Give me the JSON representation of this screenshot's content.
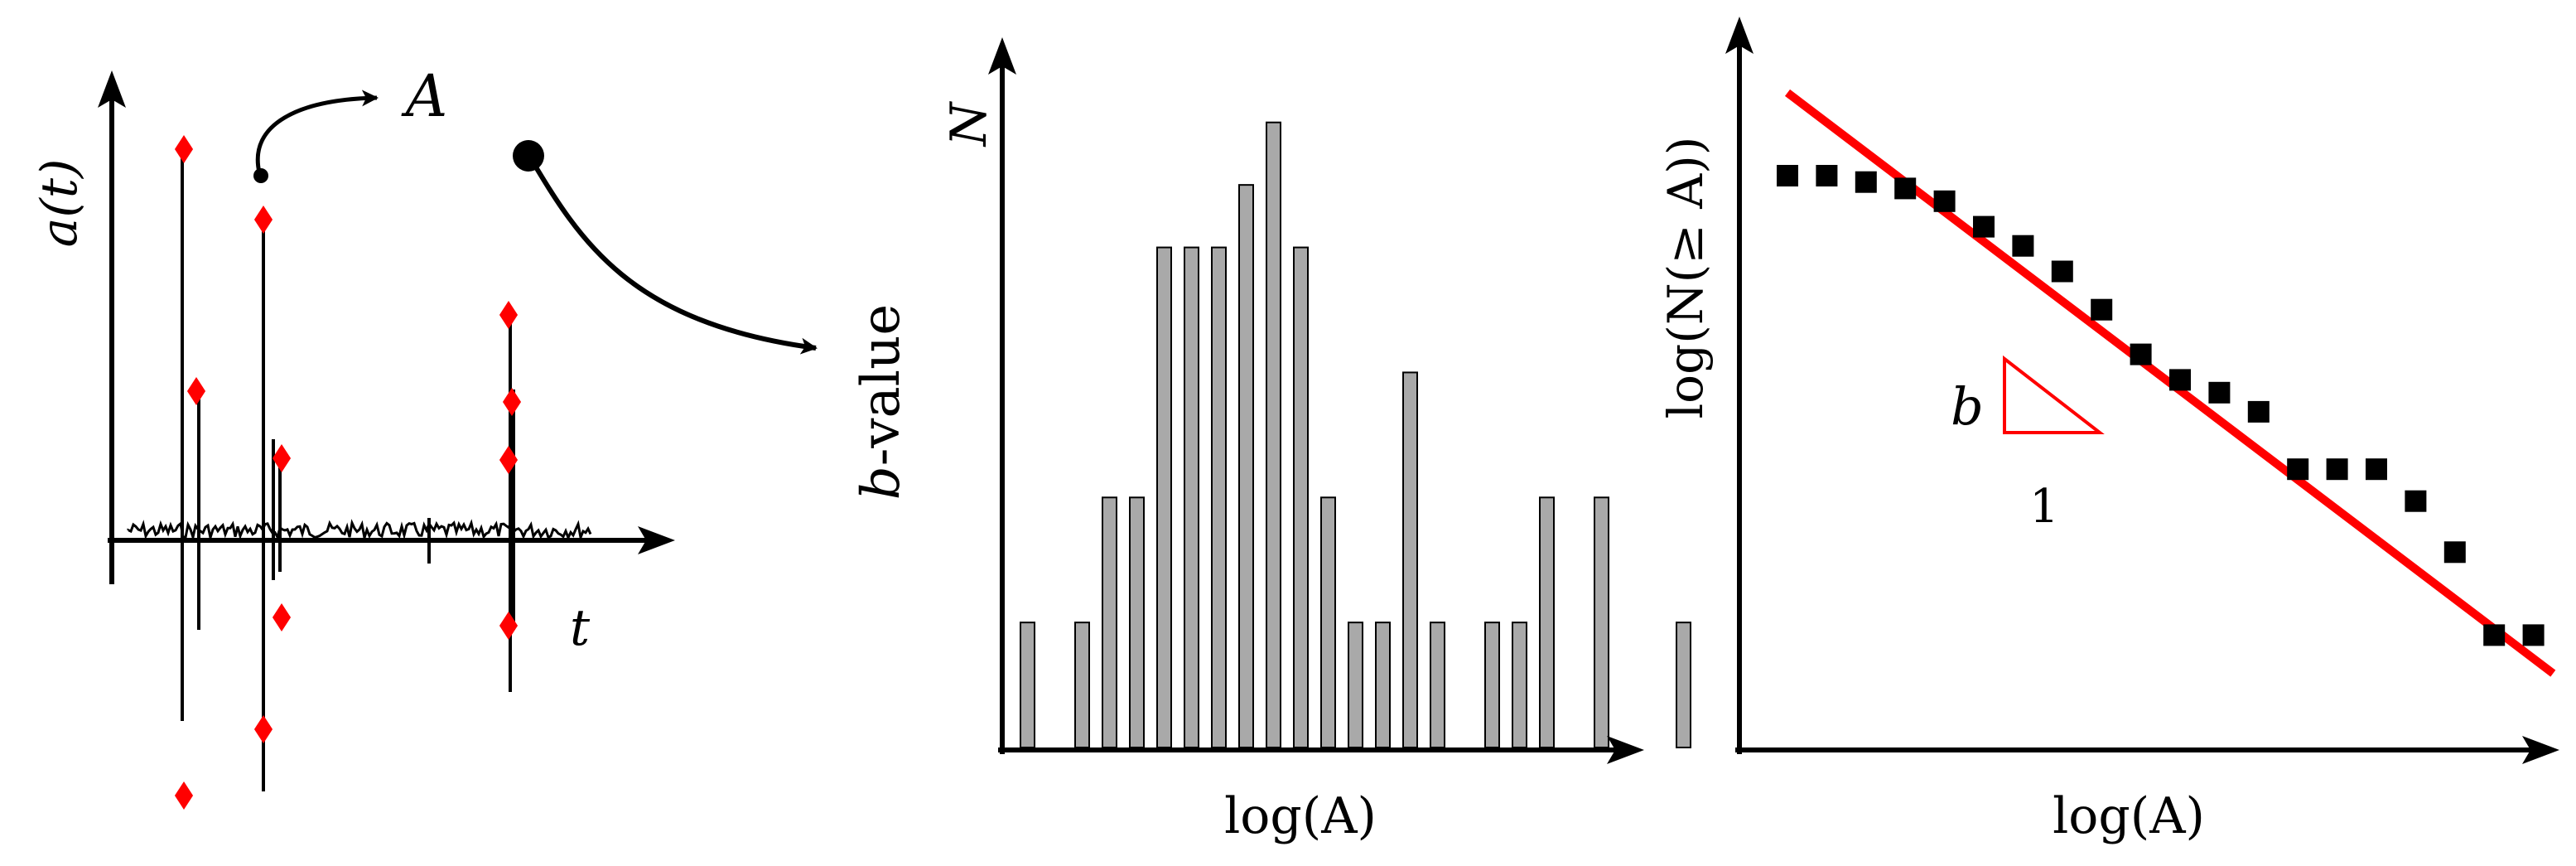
{
  "signal_panel": {
    "y_label": "a(t)",
    "x_label": "t",
    "amplitude_label": "A"
  },
  "histogram_panel": {
    "rotated_label": "b-value",
    "y_label": "N",
    "x_label": "log(A)"
  },
  "cumulative_panel": {
    "y_label": "log(N(≥ A))",
    "x_label": "log(A)",
    "slope_label": "b",
    "run_label": "1"
  },
  "colors": {
    "marker": "#ff0000",
    "bar_fill": "#a9a9a9",
    "fit_line": "#ff0000",
    "ink": "#000000"
  },
  "chart_data": [
    {
      "type": "bar",
      "note_units": "relative counts read off the histogram (no tick labels shown)",
      "values": [
        2,
        0,
        2,
        4,
        4,
        8,
        8,
        8,
        9,
        10,
        8,
        4,
        2,
        2,
        6,
        2,
        0,
        2,
        2,
        4,
        0,
        4,
        0,
        0,
        2
      ],
      "ylim": [
        0,
        10.5
      ],
      "xlabel": "log(A)",
      "ylabel": "N"
    },
    {
      "type": "scatter",
      "note_units": "relative positions in arbitrary log units (no tick labels shown)",
      "x": [
        0,
        1,
        2,
        3,
        4,
        5,
        6,
        7,
        8,
        9,
        10,
        11,
        12,
        13,
        14,
        15,
        16,
        17,
        18,
        19
      ],
      "y": [
        9.0,
        9.0,
        8.9,
        8.8,
        8.6,
        8.2,
        7.9,
        7.5,
        6.9,
        6.2,
        5.8,
        5.6,
        5.3,
        4.4,
        4.4,
        4.4,
        3.9,
        3.1,
        1.8,
        1.8
      ],
      "fit_line": {
        "x": [
          0,
          19.5
        ],
        "y": [
          10.3,
          1.2
        ]
      },
      "xlabel": "log(A)",
      "ylabel": "log(N(≥ A))"
    }
  ]
}
